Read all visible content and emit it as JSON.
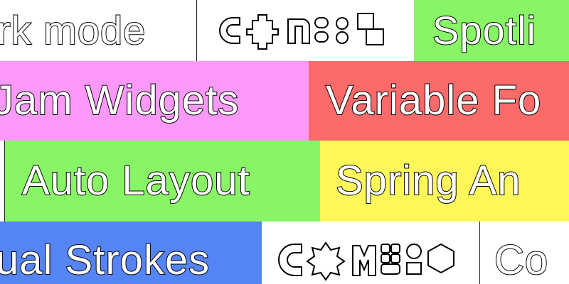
{
  "rows": [
    {
      "tiles": [
        {
          "text": "rk mode",
          "color": "#ffffff"
        },
        {
          "text": "",
          "color": "#ffffff",
          "icon": "config-logo"
        },
        {
          "text": "Spotli",
          "color": "#88f566"
        }
      ]
    },
    {
      "tiles": [
        {
          "text": "Jam Widgets",
          "color": "#fd99fb"
        },
        {
          "text": "Variable Fo",
          "color": "#fd6a6a"
        }
      ]
    },
    {
      "tiles": [
        {
          "text": "",
          "color": "#ffffff"
        },
        {
          "text": "Auto Layout",
          "color": "#88f566"
        },
        {
          "text": "Spring An",
          "color": "#fdf75a"
        }
      ]
    },
    {
      "tiles": [
        {
          "text": "ual Strokes",
          "color": "#5584f4"
        },
        {
          "text": "",
          "color": "#ffffff",
          "icon": "config-logo"
        },
        {
          "text": "Co",
          "color": "#ffffff"
        }
      ]
    }
  ]
}
